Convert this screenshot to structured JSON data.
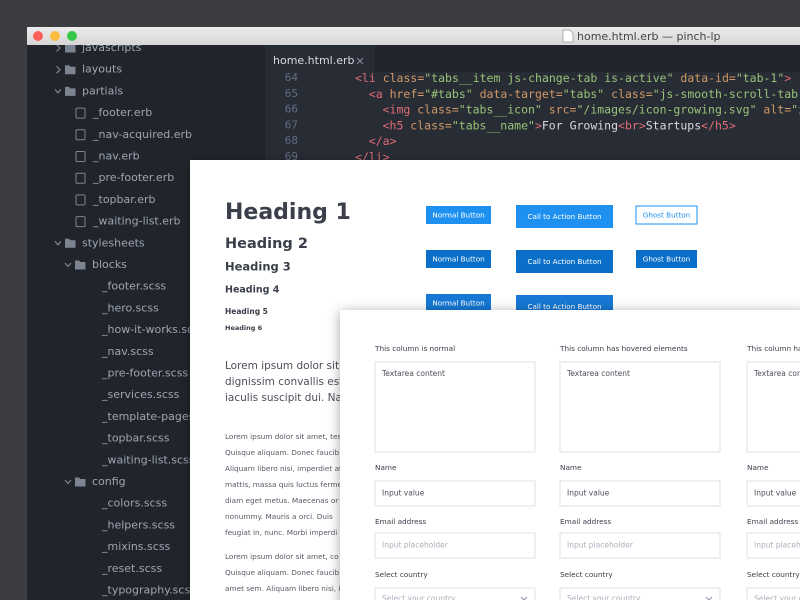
{
  "window": {
    "title": "home.html.erb — pinch-lp",
    "tab": "home.html.erb"
  },
  "sidebar": [
    {
      "label": "javascripts"
    },
    {
      "label": "layouts"
    },
    {
      "label": "partials",
      "children": [
        {
          "label": "_footer.erb"
        },
        {
          "label": "_nav-acquired.erb"
        },
        {
          "label": "_nav.erb"
        },
        {
          "label": "_pre-footer.erb"
        },
        {
          "label": "_topbar.erb"
        },
        {
          "label": "_waiting-list.erb"
        }
      ]
    },
    {
      "label": "stylesheets",
      "children": [
        {
          "label": "blocks",
          "children": [
            {
              "label": "_footer.scss"
            },
            {
              "label": "_hero.scss"
            },
            {
              "label": "_how-it-works.scss"
            },
            {
              "label": "_nav.scss"
            },
            {
              "label": "_pre-footer.scss"
            },
            {
              "label": "_services.scss"
            },
            {
              "label": "_template-pages.scss"
            },
            {
              "label": "_topbar.scss"
            },
            {
              "label": "_waiting-list.scss"
            }
          ]
        },
        {
          "label": "config",
          "children": [
            {
              "label": "_colors.scss"
            },
            {
              "label": "_helpers.scss"
            },
            {
              "label": "_mixins.scss"
            },
            {
              "label": "_reset.scss"
            },
            {
              "label": "_typography.scss"
            }
          ]
        }
      ]
    }
  ],
  "code": {
    "line_numbers": [
      64,
      65,
      66,
      67,
      68,
      69
    ],
    "lines": [
      [
        {
          "text": "<li",
          "color": "#e06c75"
        },
        {
          "text": " class=",
          "color": "#d19a66"
        },
        {
          "text": "\"tabs__item js-change-tab is-active\"",
          "color": "#98c379"
        },
        {
          "text": " data-id=",
          "color": "#d19a66"
        },
        {
          "text": "\"tab-1\"",
          "color": "#98c379"
        },
        {
          "text": ">",
          "color": "#e06c75"
        }
      ],
      [
        {
          "text": "<a",
          "color": "#e06c75"
        },
        {
          "text": " href=",
          "color": "#d19a66"
        },
        {
          "text": "\"#tabs\"",
          "color": "#98c379"
        },
        {
          "text": " data-target=",
          "color": "#d19a66"
        },
        {
          "text": "\"tabs\"",
          "color": "#98c379"
        },
        {
          "text": " class=",
          "color": "#d19a66"
        },
        {
          "text": "\"js-smooth-scroll-tab\"",
          "color": "#98c379"
        },
        {
          "text": ">",
          "color": "#e06c75"
        }
      ],
      [
        {
          "text": "<img",
          "color": "#e06c75"
        },
        {
          "text": " class=",
          "color": "#d19a66"
        },
        {
          "text": "\"tabs__icon\"",
          "color": "#98c379"
        },
        {
          "text": " src=",
          "color": "#d19a66"
        },
        {
          "text": "\"/images/icon-growing.svg\"",
          "color": "#98c379"
        },
        {
          "text": " alt=",
          "color": "#d19a66"
        },
        {
          "text": "\"icon\"",
          "color": "#98c379"
        },
        {
          "text": ">",
          "color": "#e06c75"
        }
      ],
      [
        {
          "text": "<h5",
          "color": "#e06c75"
        },
        {
          "text": " class=",
          "color": "#d19a66"
        },
        {
          "text": "\"tabs__name\"",
          "color": "#98c379"
        },
        {
          "text": ">",
          "color": "#e06c75"
        },
        {
          "text": "For Growing",
          "color": "#d7dae0"
        },
        {
          "text": "<br>",
          "color": "#e06c75"
        },
        {
          "text": "Startups",
          "color": "#d7dae0"
        },
        {
          "text": "</h5>",
          "color": "#e06c75"
        }
      ],
      [
        {
          "text": "</a>",
          "color": "#e06c75"
        }
      ],
      [
        {
          "text": "</li>",
          "color": "#e06c75"
        }
      ]
    ]
  },
  "styleguide": {
    "headings": [
      "Heading 1",
      "Heading 2",
      "Heading 3",
      "Heading 4",
      "Heading 5",
      "Heading 6"
    ],
    "buttons": {
      "normal": [
        "Normal Button",
        "Normal Button",
        "Normal Button"
      ],
      "call_to_action": [
        "Call to Action Button",
        "Call to Action Button",
        "Call to Action Button"
      ],
      "ghost": [
        "Ghost Button",
        "Ghost Button"
      ]
    },
    "intro": [
      "Lorem ipsum dolor sit amet",
      "dignissim convallis est. Q",
      "iaculis suscipit dui. Nam s"
    ],
    "body": [
      [
        "Lorem ipsum dolor sit amet, tes",
        "Quisque aliquam. Donec faucib",
        "Aliquam libero nisi, imperdiet at",
        "mattis, massa quis luctus ferme",
        "diam eget metus. Maecenas or",
        "nonummy. Mauris a orci. Duis",
        "feugiat in, nunc. Morbi imperdi"
      ],
      [
        "Lorem ipsum dolor sit amet, co",
        "Quisque aliquam. Donec faucib",
        "amet sem. Aliquam libero nisi, i"
      ]
    ]
  },
  "form": {
    "columns": [
      {
        "title": "This column is normal",
        "textarea": "Textarea content",
        "name_label": "Name",
        "name_value": "Input value",
        "email_label": "Email address",
        "email_placeholder": "Input placeholder",
        "country_label": "Select country",
        "country_placeholder": "Select your country"
      },
      {
        "title": "This column has hovered elements",
        "textarea": "Textarea content",
        "name_label": "Name",
        "name_value": "Input value",
        "email_label": "Email address",
        "email_placeholder": "Input placeholder",
        "country_label": "Select country",
        "country_placeholder": "Select your country"
      },
      {
        "title": "This column has",
        "textarea": "Textarea content",
        "name_label": "Name",
        "name_value": "Input value",
        "email_label": "Email address",
        "email_placeholder": "Input placeholder",
        "country_label": "Select country",
        "country_placeholder": "Select your country"
      }
    ]
  }
}
